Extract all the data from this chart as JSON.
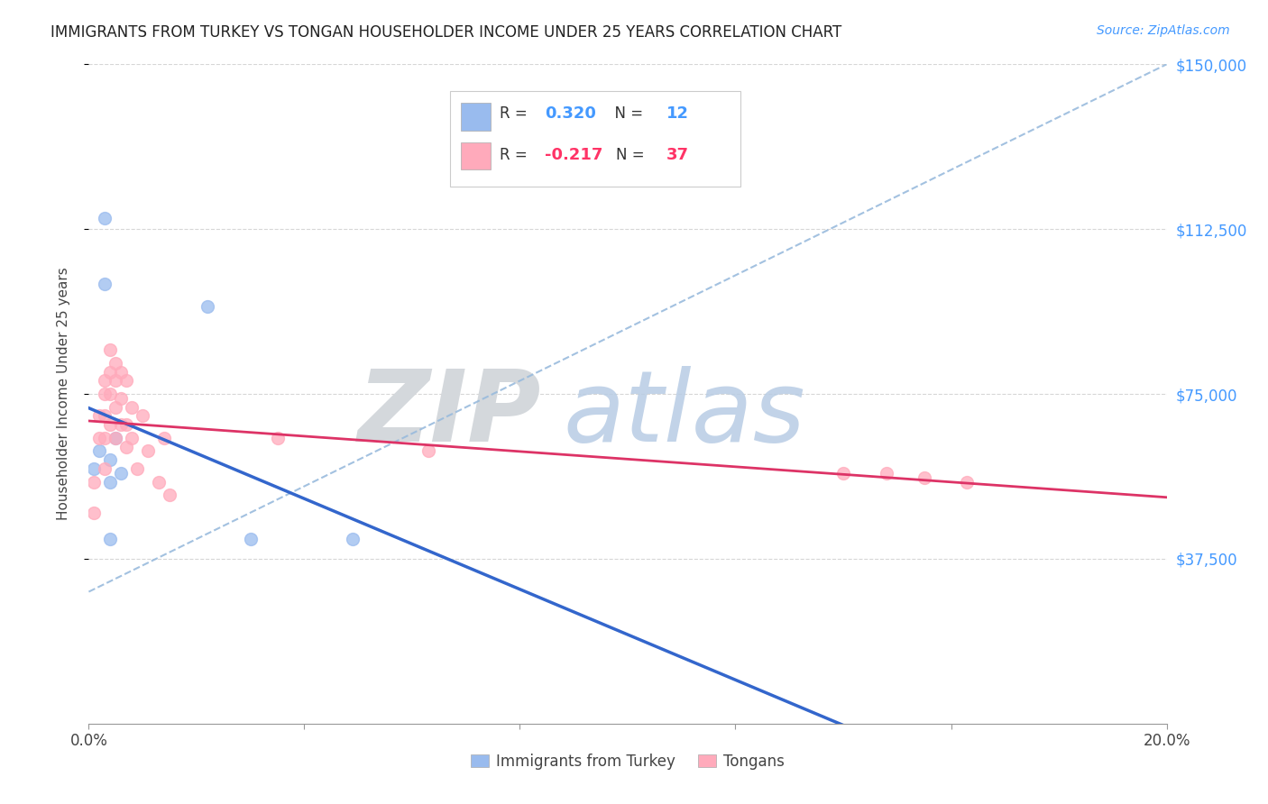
{
  "title": "IMMIGRANTS FROM TURKEY VS TONGAN HOUSEHOLDER INCOME UNDER 25 YEARS CORRELATION CHART",
  "source": "Source: ZipAtlas.com",
  "ylabel": "Householder Income Under 25 years",
  "xlim": [
    0.0,
    0.2
  ],
  "ylim": [
    0,
    150000
  ],
  "xticks": [
    0.0,
    0.04,
    0.08,
    0.12,
    0.16,
    0.2
  ],
  "xticklabels": [
    "0.0%",
    "",
    "",
    "",
    "",
    "20.0%"
  ],
  "ytick_labels_right": [
    "$150,000",
    "$112,500",
    "$75,000",
    "$37,500"
  ],
  "ytick_positions_right": [
    150000,
    112500,
    75000,
    37500
  ],
  "grid_color": "#cccccc",
  "background_color": "#ffffff",
  "blue_line_color": "#3366cc",
  "pink_line_color": "#dd3366",
  "dashed_line_color": "#99bbdd",
  "zip_watermark_color": "#d0d8e0",
  "atlas_watermark_color": "#a8c4e0",
  "turkey_scatter_color": "#99bbee",
  "tongan_scatter_color": "#ffaabb",
  "scatter_alpha": 0.75,
  "scatter_size": 100,
  "turkey_x": [
    0.001,
    0.002,
    0.003,
    0.003,
    0.004,
    0.004,
    0.004,
    0.005,
    0.006,
    0.022,
    0.03,
    0.049
  ],
  "turkey_y": [
    58000,
    62000,
    115000,
    100000,
    60000,
    42000,
    55000,
    65000,
    57000,
    95000,
    42000,
    42000
  ],
  "tongan_x": [
    0.001,
    0.001,
    0.002,
    0.002,
    0.003,
    0.003,
    0.003,
    0.003,
    0.003,
    0.004,
    0.004,
    0.004,
    0.004,
    0.005,
    0.005,
    0.005,
    0.005,
    0.006,
    0.006,
    0.006,
    0.007,
    0.007,
    0.007,
    0.008,
    0.008,
    0.009,
    0.01,
    0.011,
    0.013,
    0.014,
    0.015,
    0.035,
    0.063,
    0.14,
    0.148,
    0.155,
    0.163
  ],
  "tongan_y": [
    55000,
    48000,
    70000,
    65000,
    78000,
    75000,
    70000,
    65000,
    58000,
    85000,
    80000,
    75000,
    68000,
    82000,
    78000,
    72000,
    65000,
    80000,
    74000,
    68000,
    78000,
    68000,
    63000,
    72000,
    65000,
    58000,
    70000,
    62000,
    55000,
    65000,
    52000,
    65000,
    62000,
    57000,
    57000,
    56000,
    55000
  ],
  "legend_bottom_labels": [
    "Immigrants from Turkey",
    "Tongans"
  ]
}
